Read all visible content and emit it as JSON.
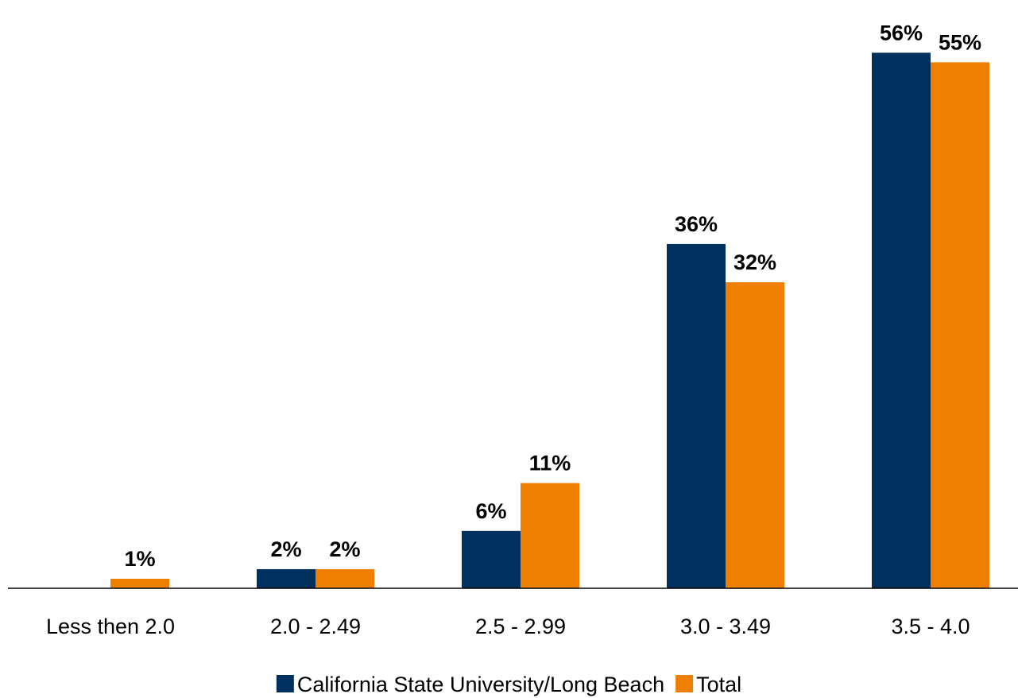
{
  "chart_data": {
    "type": "bar",
    "title": "",
    "xlabel": "",
    "ylabel": "",
    "categories": [
      "Less then 2.0",
      "2.0 - 2.49",
      "2.5 - 2.99",
      "3.0 - 3.49",
      "3.5 - 4.0"
    ],
    "series": [
      {
        "name": "California State University/Long Beach",
        "color": "#00305e",
        "values": [
          0,
          2,
          6,
          36,
          56
        ],
        "labels": [
          "",
          "2%",
          "6%",
          "36%",
          "56%"
        ]
      },
      {
        "name": "Total",
        "color": "#ee7f00",
        "values": [
          1,
          2,
          11,
          32,
          55
        ],
        "labels": [
          "1%",
          "2%",
          "11%",
          "32%",
          "55%"
        ]
      }
    ],
    "ylim": [
      0,
      56
    ],
    "unit": "%",
    "grid": false,
    "legend_position": "bottom"
  }
}
